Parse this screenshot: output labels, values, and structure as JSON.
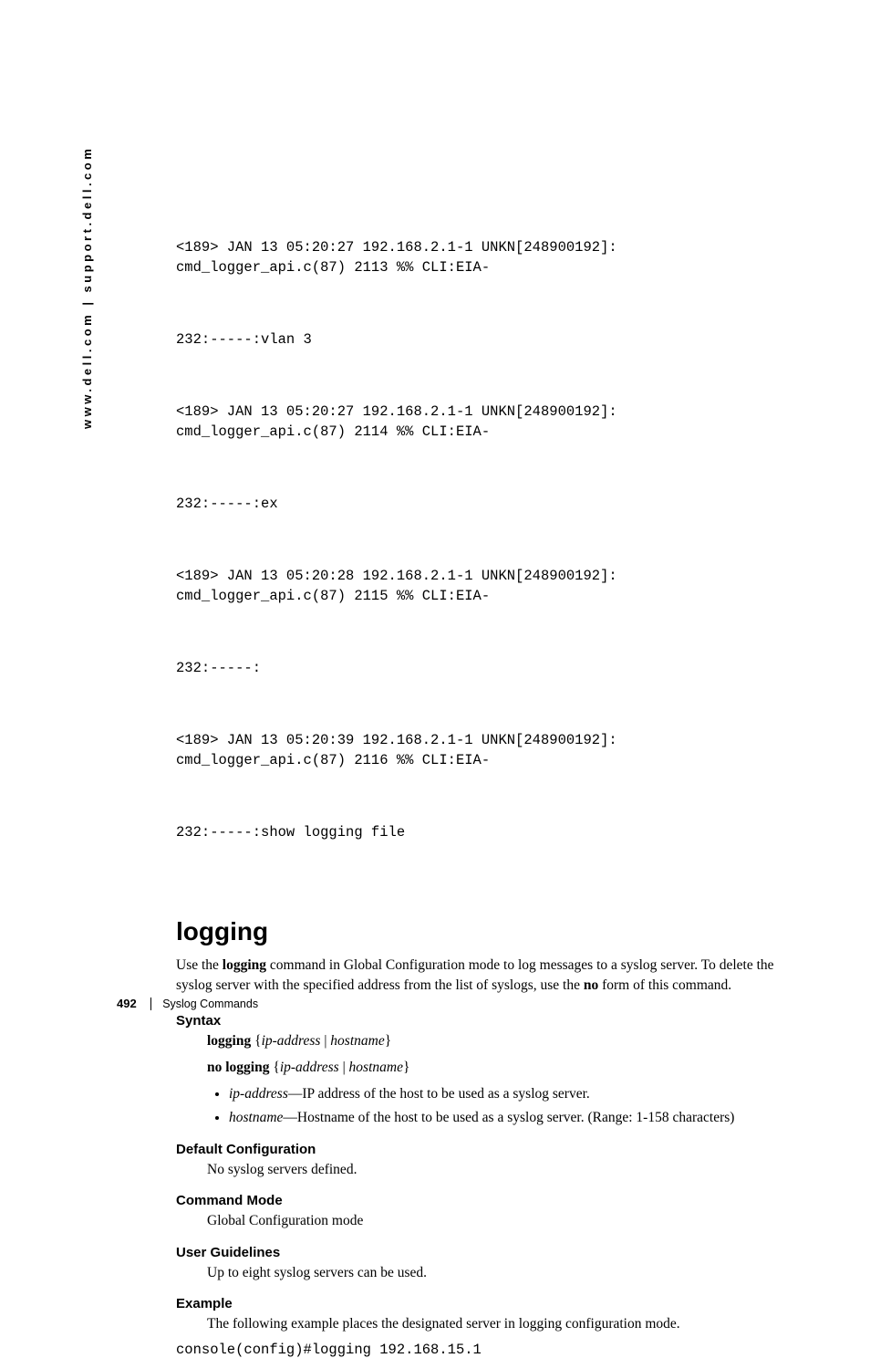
{
  "sidebar": "www.dell.com | support.dell.com",
  "log": {
    "l1": "<189> JAN 13 05:20:27 192.168.2.1-1 UNKN[248900192]:\ncmd_logger_api.c(87) 2113 %% CLI:EIA-",
    "l2": "232:-----:vlan 3",
    "l3": "<189> JAN 13 05:20:27 192.168.2.1-1 UNKN[248900192]:\ncmd_logger_api.c(87) 2114 %% CLI:EIA-",
    "l4": "232:-----:ex",
    "l5": "<189> JAN 13 05:20:28 192.168.2.1-1 UNKN[248900192]:\ncmd_logger_api.c(87) 2115 %% CLI:EIA-",
    "l6": "232:-----:",
    "l7": "<189> JAN 13 05:20:39 192.168.2.1-1 UNKN[248900192]:\ncmd_logger_api.c(87) 2116 %% CLI:EIA-",
    "l8": "232:-----:show logging file"
  },
  "section": {
    "title": "logging",
    "intro_pre": "Use the ",
    "intro_bold1": "logging",
    "intro_mid": " command in Global Configuration mode to log messages to a syslog server. To delete the syslog server with the specified address from the list of syslogs, use the ",
    "intro_bold2": "no",
    "intro_post": " form of this command."
  },
  "syntax": {
    "heading": "Syntax",
    "line1_b": "logging",
    "line1_rest": " {",
    "line1_i1": "ip-address",
    "line1_sep": " | ",
    "line1_i2": "hostname",
    "line1_end": "}",
    "line2_b": "no logging",
    "line2_rest": " {",
    "line2_i1": "ip-address",
    "line2_sep": " | ",
    "line2_i2": "hostname",
    "line2_end": "}",
    "param1_i": "ip-address",
    "param1_rest": "—IP address of the host to be used as a syslog server.",
    "param2_i": "hostname",
    "param2_rest": "—Hostname of the host to be used as a syslog server. (Range: 1-158 characters)"
  },
  "defconf": {
    "heading": "Default Configuration",
    "text": "No syslog servers defined."
  },
  "cmdmode": {
    "heading": "Command Mode",
    "text": "Global Configuration mode"
  },
  "guidelines": {
    "heading": "User Guidelines",
    "text": "Up to eight syslog servers can be used."
  },
  "example": {
    "heading": "Example",
    "text": "The following example places the designated server in logging configuration mode.",
    "code": "console(config)#logging 192.168.15.1"
  },
  "footer": {
    "page": "492",
    "chapter": "Syslog Commands"
  }
}
